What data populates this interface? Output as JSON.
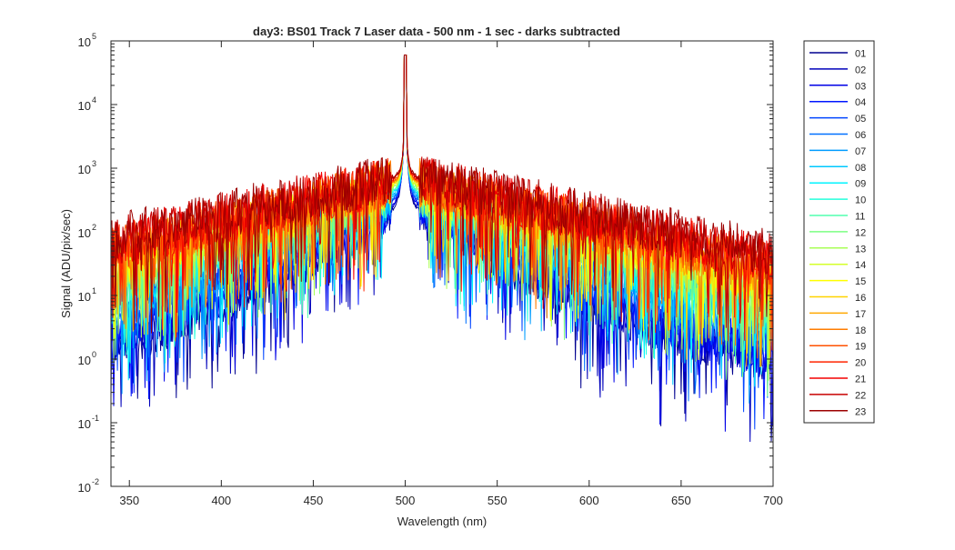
{
  "chart_data": {
    "type": "line",
    "title": "day3: BS01  Track 7 Laser data - 500 nm - 1 sec - darks subtracted",
    "xlabel": "Wavelength (nm)",
    "ylabel": "Signal (ADU/pix/sec)",
    "xlim": [
      340,
      700
    ],
    "ylim": [
      0.01,
      100000
    ],
    "yscale": "log",
    "grid": false,
    "legend_position": "outside-right",
    "x_ticks": [
      350,
      400,
      450,
      500,
      550,
      600,
      650,
      700
    ],
    "y_ticks": [
      {
        "value": 0.01,
        "base": "10",
        "exp": "-2"
      },
      {
        "value": 0.1,
        "base": "10",
        "exp": "-1"
      },
      {
        "value": 1,
        "base": "10",
        "exp": "0"
      },
      {
        "value": 10,
        "base": "10",
        "exp": "1"
      },
      {
        "value": 100,
        "base": "10",
        "exp": "2"
      },
      {
        "value": 1000,
        "base": "10",
        "exp": "3"
      },
      {
        "value": 10000,
        "base": "10",
        "exp": "4"
      },
      {
        "value": 100000,
        "base": "10",
        "exp": "5"
      }
    ],
    "peak": {
      "x": 500,
      "y": 60000
    },
    "series": [
      {
        "name": "01",
        "color": "#00008f",
        "baseline": 0.9,
        "halfwidth": 28,
        "wing_ratio": 0.01
      },
      {
        "name": "02",
        "color": "#0000bb",
        "baseline": 0.9,
        "halfwidth": 29,
        "wing_ratio": 0.011
      },
      {
        "name": "03",
        "color": "#0000e6",
        "baseline": 0.95,
        "halfwidth": 30,
        "wing_ratio": 0.012
      },
      {
        "name": "04",
        "color": "#0016ff",
        "baseline": 0.95,
        "halfwidth": 32,
        "wing_ratio": 0.013
      },
      {
        "name": "05",
        "color": "#0045ff",
        "baseline": 1.0,
        "halfwidth": 34,
        "wing_ratio": 0.014
      },
      {
        "name": "06",
        "color": "#0070ff",
        "baseline": 1.0,
        "halfwidth": 36,
        "wing_ratio": 0.015
      },
      {
        "name": "07",
        "color": "#009cff",
        "baseline": 1.0,
        "halfwidth": 38,
        "wing_ratio": 0.016
      },
      {
        "name": "08",
        "color": "#00c8ff",
        "baseline": 1.05,
        "halfwidth": 40,
        "wing_ratio": 0.017
      },
      {
        "name": "09",
        "color": "#00f4ff",
        "baseline": 1.05,
        "halfwidth": 42,
        "wing_ratio": 0.018
      },
      {
        "name": "10",
        "color": "#24ffdb",
        "baseline": 1.1,
        "halfwidth": 44,
        "wing_ratio": 0.019
      },
      {
        "name": "11",
        "color": "#50ffaf",
        "baseline": 1.1,
        "halfwidth": 46,
        "wing_ratio": 0.02
      },
      {
        "name": "12",
        "color": "#7cff83",
        "baseline": 1.15,
        "halfwidth": 48,
        "wing_ratio": 0.021
      },
      {
        "name": "13",
        "color": "#a8ff57",
        "baseline": 1.15,
        "halfwidth": 50,
        "wing_ratio": 0.022
      },
      {
        "name": "14",
        "color": "#d4ff2b",
        "baseline": 1.2,
        "halfwidth": 52,
        "wing_ratio": 0.023
      },
      {
        "name": "15",
        "color": "#ffff00",
        "baseline": 1.2,
        "halfwidth": 54,
        "wing_ratio": 0.024
      },
      {
        "name": "16",
        "color": "#ffd400",
        "baseline": 1.25,
        "halfwidth": 56,
        "wing_ratio": 0.025
      },
      {
        "name": "17",
        "color": "#ffa800",
        "baseline": 1.25,
        "halfwidth": 58,
        "wing_ratio": 0.026
      },
      {
        "name": "18",
        "color": "#ff7c00",
        "baseline": 1.3,
        "halfwidth": 60,
        "wing_ratio": 0.027
      },
      {
        "name": "19",
        "color": "#ff5000",
        "baseline": 1.3,
        "halfwidth": 62,
        "wing_ratio": 0.028
      },
      {
        "name": "20",
        "color": "#ff2400",
        "baseline": 1.35,
        "halfwidth": 64,
        "wing_ratio": 0.029
      },
      {
        "name": "21",
        "color": "#f40000",
        "baseline": 1.35,
        "halfwidth": 66,
        "wing_ratio": 0.03
      },
      {
        "name": "22",
        "color": "#c80000",
        "baseline": 1.4,
        "halfwidth": 68,
        "wing_ratio": 0.031
      },
      {
        "name": "23",
        "color": "#9c0000",
        "baseline": 1.4,
        "halfwidth": 70,
        "wing_ratio": 0.032
      }
    ]
  }
}
